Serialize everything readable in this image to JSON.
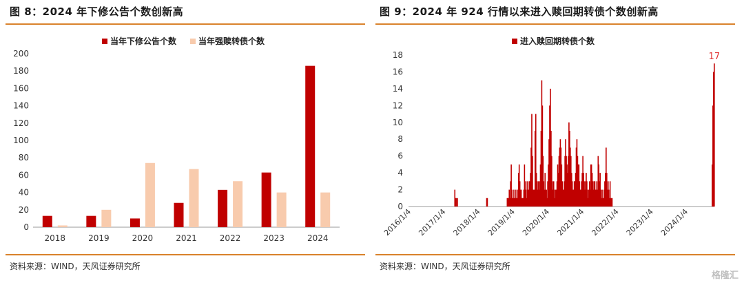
{
  "left": {
    "title": "图 8：2024 年下修公告个数创新高",
    "source": "资料来源：WIND，天风证券研究所"
  },
  "right": {
    "title": "图 9：2024 年 924 行情以来进入赎回期转债个数创新高",
    "source": "资料来源：WIND，天风证券研究所"
  },
  "watermark": "格隆汇",
  "colors": {
    "darkred": "#c00000",
    "peach": "#f8cbad",
    "rule": "#d9822b"
  },
  "chart_data": [
    {
      "type": "bar",
      "categories": [
        "2018",
        "2019",
        "2020",
        "2021",
        "2022",
        "2023",
        "2024"
      ],
      "series": [
        {
          "name": "当年下修公告个数",
          "values": [
            13,
            13,
            10,
            28,
            43,
            63,
            186
          ]
        },
        {
          "name": "当年强赎转债个数",
          "values": [
            2,
            20,
            74,
            67,
            53,
            40,
            40
          ]
        }
      ],
      "ylim": [
        0,
        200
      ],
      "yticks": [
        0,
        20,
        40,
        60,
        80,
        100,
        120,
        140,
        160,
        180,
        200
      ],
      "legend": "top"
    },
    {
      "type": "bar",
      "series": [
        {
          "name": "进入赎回期转债个数"
        }
      ],
      "ylim": [
        0,
        18
      ],
      "yticks": [
        0,
        2,
        4,
        6,
        8,
        10,
        12,
        14,
        16,
        18
      ],
      "xticks": [
        "2016/1/4",
        "2017/1/4",
        "2018/1/4",
        "2019/1/4",
        "2020/1/4",
        "2021/1/4",
        "2022/1/4",
        "2023/1/4",
        "2024/1/4"
      ],
      "annotation": "17",
      "legend": "top",
      "weekly": [
        {
          "start": "2017-05-01",
          "values": [
            2,
            1,
            1,
            0,
            1
          ]
        },
        {
          "start": "2018-04-02",
          "values": [
            1,
            1
          ]
        },
        {
          "start": "2018-11-05",
          "values": [
            1,
            1,
            1,
            2,
            1,
            3,
            5,
            2,
            1,
            1,
            2,
            1,
            1,
            2,
            1,
            1,
            2,
            4,
            5,
            3,
            2,
            2,
            1,
            1,
            1,
            2,
            5,
            3,
            2,
            1,
            3,
            2,
            2,
            3,
            3,
            4,
            7,
            11,
            6,
            2,
            2,
            2,
            9,
            11,
            4,
            3,
            2,
            3,
            2,
            3,
            5,
            9,
            15,
            12,
            6,
            3,
            2,
            4,
            2,
            2,
            1,
            3,
            5,
            8,
            12,
            14,
            9,
            6,
            3,
            2,
            3,
            2,
            1,
            2,
            2,
            3,
            5,
            4,
            6,
            7,
            8,
            7,
            5,
            3,
            2,
            2,
            3,
            6,
            8,
            6,
            5,
            4,
            6,
            10,
            9,
            7,
            6,
            4,
            3,
            2,
            2,
            3,
            3,
            4,
            7,
            8,
            6,
            5,
            5,
            3,
            2,
            2,
            3,
            4,
            6,
            4,
            3,
            2,
            3,
            4,
            3,
            2,
            1,
            2,
            3,
            2,
            5,
            5,
            4,
            3,
            2,
            3,
            3,
            2,
            2,
            3,
            2,
            6,
            5,
            3,
            4,
            2,
            1,
            2,
            1,
            1,
            2,
            3,
            4,
            7,
            4,
            2,
            3,
            2,
            1,
            3,
            1,
            1,
            1
          ]
        },
        {
          "start": "2024-10-07",
          "values": [
            5,
            12,
            16,
            17
          ]
        }
      ]
    }
  ]
}
